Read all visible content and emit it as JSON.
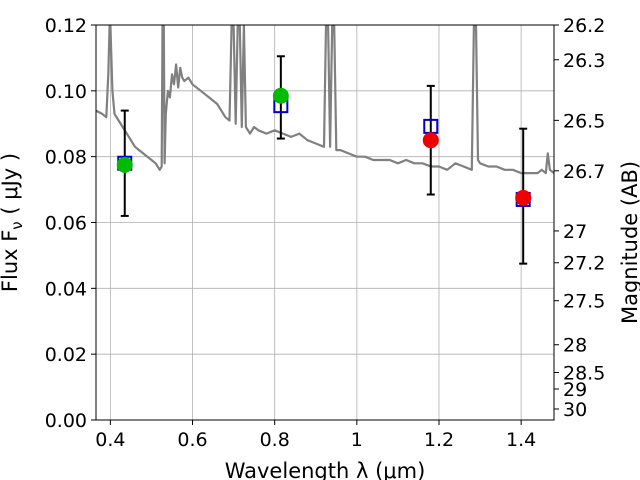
{
  "chart_data": {
    "type": "scatter",
    "xlabel": "Wavelength  λ (μm)",
    "ylabel": "Flux  F",
    "ylabel_sub": "ν",
    "ylabel_unit": " ( μJy )",
    "y2label": "Magnitude (AB)",
    "xlim": [
      0.365,
      1.48
    ],
    "ylim": [
      0.0,
      0.12
    ],
    "grid": true,
    "x_ticks": [
      0.4,
      0.6,
      0.8,
      1.0,
      1.2,
      1.4
    ],
    "x_tick_labels": [
      "0.4",
      "0.6",
      "0.8",
      "1",
      "1.2",
      "1.4"
    ],
    "y_ticks": [
      0.0,
      0.02,
      0.04,
      0.06,
      0.08,
      0.1,
      0.12
    ],
    "y_tick_labels": [
      "0.00",
      "0.02",
      "0.04",
      "0.06",
      "0.08",
      "0.10",
      "0.12"
    ],
    "y2_ticks": [
      26.2,
      26.3,
      26.5,
      26.7,
      27,
      27.2,
      27.5,
      28,
      28.5,
      29,
      30
    ],
    "y2_tick_labels": [
      "26.2",
      "26.3",
      "26.5",
      "26.7",
      "27",
      "27.2",
      "27.5",
      "28",
      "28.5",
      "29",
      "30"
    ],
    "series": [
      {
        "name": "model-spectrum",
        "kind": "line",
        "color": "#808080",
        "x": [
          0.365,
          0.38,
          0.39,
          0.395,
          0.398,
          0.4,
          0.405,
          0.41,
          0.42,
          0.43,
          0.44,
          0.45,
          0.46,
          0.47,
          0.48,
          0.49,
          0.5,
          0.51,
          0.52,
          0.525,
          0.527,
          0.53,
          0.532,
          0.535,
          0.54,
          0.545,
          0.55,
          0.555,
          0.56,
          0.565,
          0.57,
          0.575,
          0.58,
          0.59,
          0.6,
          0.62,
          0.64,
          0.66,
          0.68,
          0.69,
          0.695,
          0.7,
          0.705,
          0.71,
          0.715,
          0.72,
          0.725,
          0.73,
          0.74,
          0.75,
          0.76,
          0.78,
          0.8,
          0.82,
          0.84,
          0.86,
          0.88,
          0.9,
          0.92,
          0.925,
          0.93,
          0.935,
          0.94,
          0.945,
          0.95,
          0.96,
          0.98,
          1.0,
          1.02,
          1.04,
          1.06,
          1.08,
          1.1,
          1.12,
          1.14,
          1.16,
          1.18,
          1.2,
          1.22,
          1.24,
          1.26,
          1.28,
          1.285,
          1.29,
          1.295,
          1.3,
          1.32,
          1.34,
          1.36,
          1.38,
          1.4,
          1.42,
          1.44,
          1.45,
          1.46,
          1.465,
          1.47,
          1.48
        ],
        "y": [
          0.094,
          0.093,
          0.092,
          0.105,
          0.12,
          0.12,
          0.1,
          0.093,
          0.091,
          0.089,
          0.087,
          0.085,
          0.083,
          0.082,
          0.081,
          0.08,
          0.079,
          0.078,
          0.076,
          0.077,
          0.12,
          0.12,
          0.078,
          0.093,
          0.1,
          0.098,
          0.105,
          0.102,
          0.108,
          0.101,
          0.107,
          0.104,
          0.103,
          0.104,
          0.102,
          0.1,
          0.098,
          0.096,
          0.092,
          0.091,
          0.12,
          0.12,
          0.09,
          0.12,
          0.12,
          0.089,
          0.12,
          0.089,
          0.087,
          0.089,
          0.088,
          0.087,
          0.088,
          0.087,
          0.086,
          0.087,
          0.085,
          0.084,
          0.083,
          0.12,
          0.12,
          0.083,
          0.12,
          0.12,
          0.082,
          0.082,
          0.081,
          0.08,
          0.08,
          0.079,
          0.079,
          0.079,
          0.078,
          0.079,
          0.078,
          0.078,
          0.077,
          0.077,
          0.076,
          0.078,
          0.077,
          0.076,
          0.12,
          0.12,
          0.079,
          0.078,
          0.077,
          0.077,
          0.076,
          0.076,
          0.075,
          0.075,
          0.075,
          0.076,
          0.075,
          0.081,
          0.076,
          0.075
        ]
      },
      {
        "name": "observed-flux",
        "kind": "errorbar",
        "color": "#000000",
        "x": [
          0.435,
          0.815,
          1.18,
          1.405
        ],
        "y": [
          0.078,
          0.098,
          0.085,
          0.068
        ],
        "yerr": [
          0.016,
          0.0125,
          0.0165,
          0.0205
        ]
      },
      {
        "name": "model-photometry",
        "kind": "marker-square",
        "color": "#0000cc",
        "x": [
          0.435,
          0.815,
          1.18,
          1.405
        ],
        "y": [
          0.078,
          0.0955,
          0.0892,
          0.067
        ]
      },
      {
        "name": "detection-points",
        "kind": "marker-circle",
        "colors": [
          "#00bb00",
          "#00bb00",
          "#ee0000",
          "#ee0000"
        ],
        "x": [
          0.435,
          0.815,
          1.18,
          1.405
        ],
        "y": [
          0.0775,
          0.0985,
          0.085,
          0.0675
        ]
      }
    ]
  }
}
